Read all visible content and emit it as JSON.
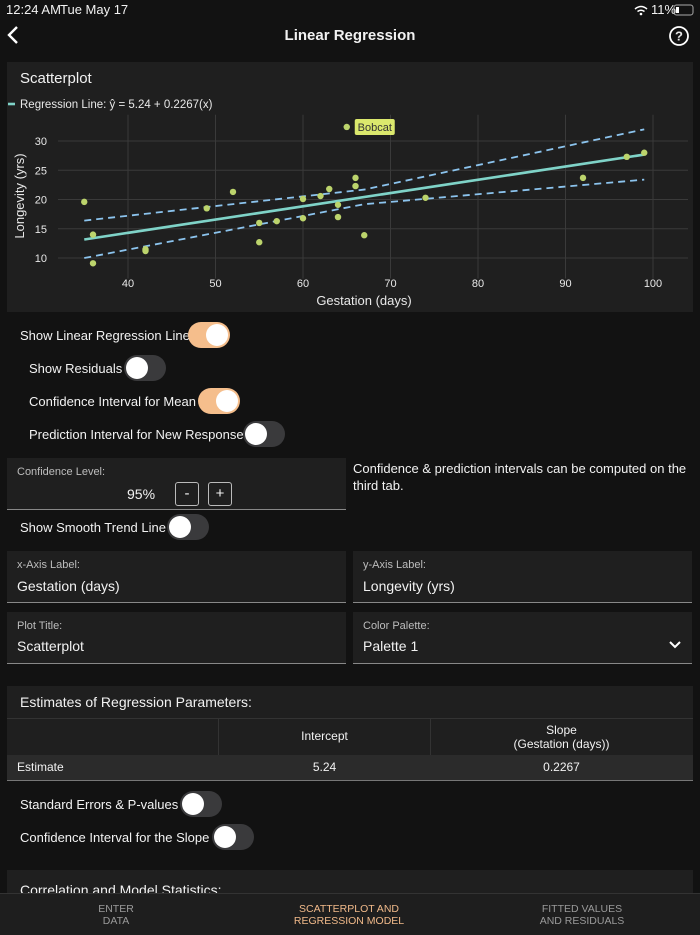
{
  "status_bar": {
    "time": "12:24 AM",
    "date": "Tue May 17",
    "battery": "11%"
  },
  "nav": {
    "title": "Linear Regression"
  },
  "chart_data": {
    "type": "scatter",
    "title": "Scatterplot",
    "x_label": "Gestation (days)",
    "y_label": "Longevity (yrs)",
    "color": "#bcd46c",
    "x": [
      35,
      36,
      36,
      42,
      42,
      49,
      52,
      55,
      55,
      57,
      60,
      60,
      62,
      63,
      64,
      64,
      65,
      66,
      66,
      67,
      74,
      92,
      97,
      99
    ],
    "values": [
      19.6,
      14,
      9.1,
      11.5,
      11.2,
      18.5,
      21.3,
      12.7,
      16,
      16.3,
      20.1,
      16.8,
      20.6,
      21.8,
      19.1,
      17,
      32.4,
      23.7,
      22.3,
      13.9,
      20.3,
      23.7,
      27.3,
      28
    ],
    "labels": [
      null,
      null,
      null,
      null,
      null,
      null,
      null,
      null,
      null,
      null,
      null,
      null,
      null,
      null,
      null,
      null,
      "Bobcat",
      null,
      null,
      null,
      null,
      null,
      null,
      null
    ],
    "lines": [
      {
        "name": "Regression Line: ŷ = 5.24 + 0.2267(x)",
        "color": "#7fd3c8",
        "x": [
          35,
          99
        ],
        "values": [
          13.17,
          27.68
        ]
      },
      {
        "color": "#8cc4ee",
        "dash": true,
        "x": [
          35,
          67,
          99
        ],
        "values": [
          16.4,
          21.7,
          32
        ]
      },
      {
        "color": "#8cc4ee",
        "dash": true,
        "x": [
          35,
          67,
          99
        ],
        "values": [
          10,
          19.2,
          23.4
        ]
      }
    ],
    "xlim": [
      32,
      104
    ],
    "ylim": [
      6.5,
      34.5
    ],
    "xticks": [
      40,
      50,
      60,
      70,
      80,
      90,
      100
    ],
    "yticks": [
      10,
      15,
      20,
      25,
      30
    ],
    "grid": true
  },
  "toggles": [
    {
      "label": "Show Linear Regression Line",
      "on": true
    },
    {
      "label": "Show Residuals",
      "on": false
    },
    {
      "label": "Confidence Interval for Mean",
      "on": true
    },
    {
      "label": "Prediction Interval for New Response",
      "on": false
    }
  ],
  "confidence": {
    "label": "Confidence Level:",
    "value": "95%",
    "minus": "-",
    "plus": "+"
  },
  "note": "Confidence & prediction intervals can be computed on the third tab.",
  "smooth": {
    "label": "Show Smooth Trend Line",
    "on": false
  },
  "fields": [
    {
      "label": "x-Axis Label:",
      "value": "Gestation (days)"
    },
    {
      "label": "y-Axis Label:",
      "value": "Longevity (yrs)"
    },
    {
      "label": "Plot Title:",
      "value": "Scatterplot"
    },
    {
      "label": "Color Palette:",
      "value": "Palette 1"
    }
  ],
  "estimates": {
    "title": "Estimates of Regression Parameters:",
    "header": [
      [
        "Intercept"
      ],
      [
        "Slope",
        "(Gestation (days))"
      ]
    ],
    "rows": [
      [
        "Estimate",
        5.24,
        0.2267
      ]
    ]
  },
  "toggles2": [
    {
      "label": "Standard Errors & P-values",
      "on": false
    },
    {
      "label": "Confidence Interval for the Slope",
      "on": false
    }
  ],
  "next_section": "Correlation and Model Statistics:",
  "tabs": [
    {
      "lines": [
        "ENTER",
        "DATA"
      ],
      "active": false
    },
    {
      "lines": [
        "SCATTERPLOT AND",
        "REGRESSION MODEL"
      ],
      "active": true
    },
    {
      "lines": [
        "FITTED VALUES",
        "AND RESIDUALS"
      ],
      "active": false
    }
  ]
}
